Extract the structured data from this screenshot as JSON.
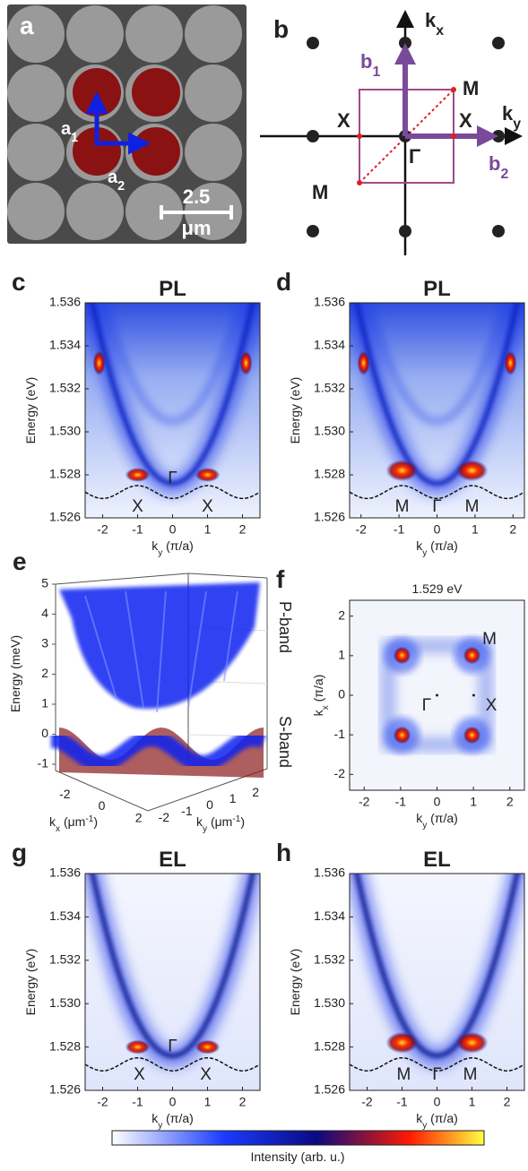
{
  "figure": {
    "a": {
      "label": "a",
      "vectors": [
        [
          {
            "t": "a"
          },
          {
            "sub": "1"
          }
        ],
        [
          {
            "t": "a"
          },
          {
            "sub": "2"
          }
        ]
      ],
      "scale_bar": [
        "2.5",
        "μm"
      ]
    },
    "b": {
      "label": "b",
      "axes": [
        [
          {
            "t": "k"
          },
          {
            "sub": "x"
          }
        ],
        [
          {
            "t": "k"
          },
          {
            "sub": "y"
          }
        ]
      ],
      "vectors": [
        [
          {
            "t": "b"
          },
          {
            "sub": "1"
          }
        ],
        [
          {
            "t": "b"
          },
          {
            "sub": "2"
          }
        ]
      ],
      "points": [
        "X",
        "X",
        "M",
        "M",
        "Γ"
      ]
    },
    "c": {
      "label": "c",
      "title": "PL",
      "ylabel": "Energy (eV)",
      "xlabel": [
        {
          "t": "k"
        },
        {
          "sub": "y"
        },
        {
          "t": " (π/a)"
        }
      ],
      "xlim": [
        -2.5,
        2.5
      ],
      "ylim": [
        1.526,
        1.536
      ],
      "xticks": [
        -2,
        -1,
        0,
        1,
        2
      ],
      "yticks": [
        1.526,
        1.528,
        {
          "value": 1.53,
          "label": "1.530"
        },
        1.532,
        1.534,
        1.536
      ],
      "points": [
        "X",
        "Γ",
        "X"
      ]
    },
    "d": {
      "label": "d",
      "title": "PL",
      "ylabel": "Energy (eV)",
      "xlabel": [
        {
          "t": "k"
        },
        {
          "sub": "y"
        },
        {
          "t": " (π/a)"
        }
      ],
      "xlim": [
        -2.3,
        2.3
      ],
      "ylim": [
        1.526,
        1.536
      ],
      "xticks": [
        -2,
        -1,
        0,
        1,
        2
      ],
      "yticks": [
        1.526,
        1.528,
        {
          "value": 1.53,
          "label": "1.530"
        },
        1.532,
        1.534,
        1.536
      ],
      "points": [
        "M",
        "Γ",
        "M"
      ]
    },
    "e": {
      "label": "e",
      "zlabel": "Energy (meV)",
      "zticks": [
        -1,
        0,
        1,
        2,
        3,
        4,
        5
      ],
      "kx_ticks": [
        -2,
        0,
        2
      ],
      "ky_ticks": [
        -2,
        -1,
        0,
        1,
        2
      ],
      "kx_label": [
        {
          "t": "k"
        },
        {
          "sub": "x"
        },
        {
          "t": " (μm"
        },
        {
          "sup": "-1"
        },
        {
          "t": ")"
        }
      ],
      "ky_label": [
        {
          "t": "k"
        },
        {
          "sub": "y"
        },
        {
          "t": " (μm"
        },
        {
          "sup": "-1"
        },
        {
          "t": ")"
        }
      ],
      "bands": [
        "P-band",
        "S-band"
      ]
    },
    "f": {
      "label": "f",
      "title": "1.529 eV",
      "ylabel": [
        {
          "t": "k"
        },
        {
          "sub": "x"
        },
        {
          "t": " (π/a)"
        }
      ],
      "xlabel": [
        {
          "t": "k"
        },
        {
          "sub": "y"
        },
        {
          "t": " (π/a)"
        }
      ],
      "xlim": [
        -2.4,
        2.4
      ],
      "ylim": [
        -2.4,
        2.4
      ],
      "xticks": [
        -2,
        -1,
        0,
        1,
        2
      ],
      "yticks": [
        -2,
        -1,
        0,
        1,
        2
      ],
      "points": [
        "M",
        "Γ",
        "X"
      ]
    },
    "g": {
      "label": "g",
      "title": "EL",
      "ylabel": "Energy (eV)",
      "xlabel": [
        {
          "t": "k"
        },
        {
          "sub": "y"
        },
        {
          "t": " (π/a)"
        }
      ],
      "xlim": [
        -2.5,
        2.5
      ],
      "ylim": [
        1.526,
        1.536
      ],
      "xticks": [
        -2,
        -1,
        0,
        1,
        2
      ],
      "yticks": [
        1.526,
        1.528,
        {
          "value": 1.53,
          "label": "1.530"
        },
        1.532,
        1.534,
        1.536
      ],
      "points": [
        "X",
        "Γ",
        "X"
      ]
    },
    "h": {
      "label": "h",
      "title": "EL",
      "ylabel": "Energy (eV)",
      "xlabel": [
        {
          "t": "k"
        },
        {
          "sub": "y"
        },
        {
          "t": " (π/a)"
        }
      ],
      "xlim": [
        -2.5,
        2.5
      ],
      "ylim": [
        1.526,
        1.536
      ],
      "xticks": [
        -2,
        -1,
        0,
        1,
        2
      ],
      "yticks": [
        1.526,
        1.528,
        {
          "value": 1.53,
          "label": "1.530"
        },
        1.532,
        1.534,
        1.536
      ],
      "points": [
        "M",
        "Γ",
        "M"
      ]
    },
    "colorbar": {
      "label": "Intensity (arb. u.)"
    }
  }
}
